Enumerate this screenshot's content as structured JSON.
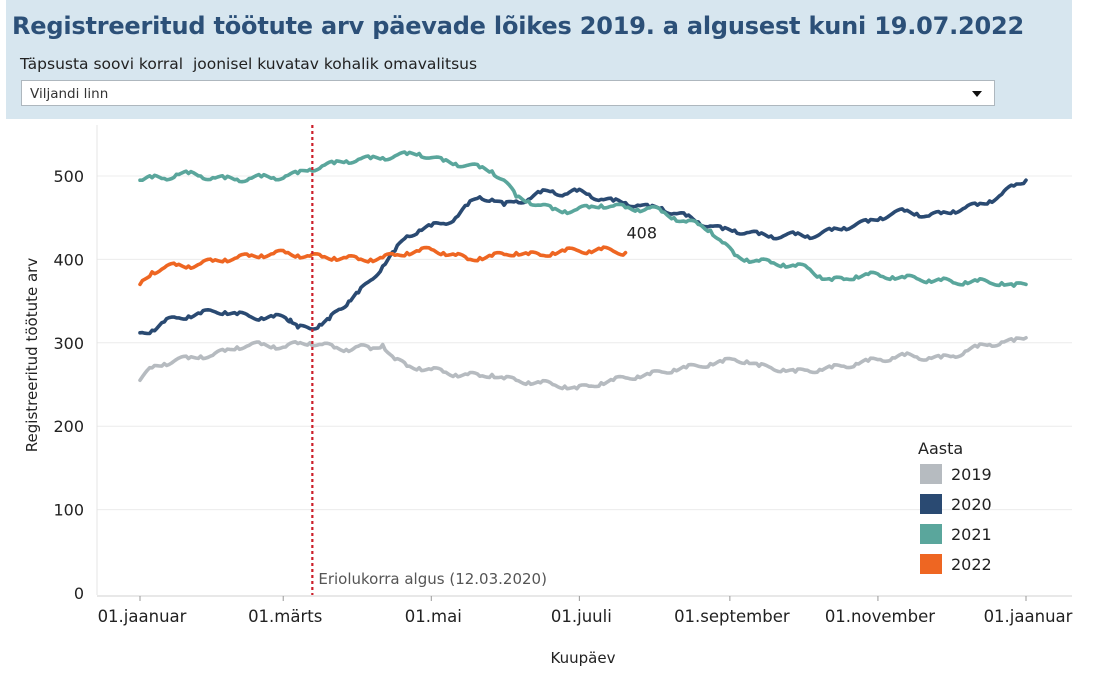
{
  "header": {
    "title": "Registreeritud töötute arv päevade lõikes 2019. a algusest kuni 19.07.2022",
    "filter_label": "Täpsusta soovi korral  joonisel kuvatav kohalik omavalitsus",
    "filter_value": "Viljandi linn"
  },
  "chart_data": {
    "type": "line",
    "title": "Registreeritud töötute arv päevade lõikes 2019. a algusest kuni 19.07.2022",
    "xlabel": "Kuupäev",
    "ylabel": "Registreeritud töötute arv",
    "xlim": [
      0,
      365
    ],
    "ylim": [
      0,
      540
    ],
    "y_ticks": [
      0,
      100,
      200,
      300,
      400,
      500
    ],
    "x_ticks": [
      {
        "day": 0,
        "label": "01.jaanuar"
      },
      {
        "day": 59,
        "label": "01.märts"
      },
      {
        "day": 120,
        "label": "01.mai"
      },
      {
        "day": 181,
        "label": "01.juuli"
      },
      {
        "day": 243,
        "label": "01.september"
      },
      {
        "day": 304,
        "label": "01.november"
      },
      {
        "day": 365,
        "label": "01.jaanuar"
      }
    ],
    "grid": true,
    "legend_title": "Aasta",
    "legend_position": "bottom-right",
    "reference_line": {
      "day": 71,
      "label": "Eriolukorra algus (12.03.2020)",
      "color": "#cc1f2a"
    },
    "end_label": {
      "series": "2022",
      "value": "408"
    },
    "series": [
      {
        "name": "2019",
        "color": "#b6bbc0",
        "points": [
          [
            0,
            255
          ],
          [
            5,
            270
          ],
          [
            10,
            275
          ],
          [
            15,
            280
          ],
          [
            20,
            281
          ],
          [
            25,
            284
          ],
          [
            30,
            285
          ],
          [
            35,
            290
          ],
          [
            40,
            295
          ],
          [
            45,
            297
          ],
          [
            50,
            298
          ],
          [
            55,
            296
          ],
          [
            60,
            295
          ],
          [
            65,
            299
          ],
          [
            70,
            300
          ],
          [
            75,
            298
          ],
          [
            80,
            294
          ],
          [
            85,
            292
          ],
          [
            90,
            296
          ],
          [
            95,
            292
          ],
          [
            100,
            298
          ],
          [
            105,
            280
          ],
          [
            110,
            272
          ],
          [
            115,
            270
          ],
          [
            120,
            268
          ],
          [
            125,
            265
          ],
          [
            130,
            262
          ],
          [
            135,
            262
          ],
          [
            140,
            260
          ],
          [
            145,
            262
          ],
          [
            150,
            257
          ],
          [
            155,
            255
          ],
          [
            160,
            253
          ],
          [
            165,
            252
          ],
          [
            170,
            250
          ],
          [
            175,
            248
          ],
          [
            180,
            245
          ],
          [
            185,
            248
          ],
          [
            190,
            252
          ],
          [
            195,
            255
          ],
          [
            200,
            258
          ],
          [
            205,
            260
          ],
          [
            210,
            262
          ],
          [
            215,
            265
          ],
          [
            220,
            268
          ],
          [
            225,
            270
          ],
          [
            230,
            272
          ],
          [
            235,
            275
          ],
          [
            240,
            277
          ],
          [
            245,
            280
          ],
          [
            250,
            278
          ],
          [
            255,
            272
          ],
          [
            260,
            270
          ],
          [
            265,
            268
          ],
          [
            270,
            265
          ],
          [
            275,
            267
          ],
          [
            280,
            268
          ],
          [
            285,
            270
          ],
          [
            290,
            272
          ],
          [
            295,
            275
          ],
          [
            300,
            278
          ],
          [
            305,
            280
          ],
          [
            310,
            282
          ],
          [
            315,
            285
          ],
          [
            320,
            283
          ],
          [
            325,
            282
          ],
          [
            330,
            282
          ],
          [
            335,
            284
          ],
          [
            340,
            290
          ],
          [
            345,
            295
          ],
          [
            350,
            298
          ],
          [
            355,
            301
          ],
          [
            360,
            302
          ],
          [
            365,
            306
          ]
        ]
      },
      {
        "name": "2020",
        "color": "#2a4a72",
        "points": [
          [
            0,
            312
          ],
          [
            5,
            315
          ],
          [
            10,
            325
          ],
          [
            15,
            330
          ],
          [
            20,
            332
          ],
          [
            25,
            335
          ],
          [
            30,
            338
          ],
          [
            35,
            337
          ],
          [
            40,
            334
          ],
          [
            45,
            332
          ],
          [
            50,
            330
          ],
          [
            55,
            331
          ],
          [
            60,
            330
          ],
          [
            62,
            328
          ],
          [
            65,
            318
          ],
          [
            70,
            317
          ],
          [
            74,
            322
          ],
          [
            78,
            328
          ],
          [
            82,
            340
          ],
          [
            86,
            350
          ],
          [
            90,
            360
          ],
          [
            95,
            375
          ],
          [
            100,
            392
          ],
          [
            105,
            410
          ],
          [
            110,
            428
          ],
          [
            115,
            435
          ],
          [
            120,
            440
          ],
          [
            125,
            443
          ],
          [
            130,
            450
          ],
          [
            135,
            465
          ],
          [
            140,
            475
          ],
          [
            145,
            472
          ],
          [
            150,
            465
          ],
          [
            155,
            470
          ],
          [
            160,
            472
          ],
          [
            165,
            480
          ],
          [
            170,
            482
          ],
          [
            175,
            478
          ],
          [
            180,
            482
          ],
          [
            185,
            478
          ],
          [
            190,
            472
          ],
          [
            195,
            470
          ],
          [
            200,
            468
          ],
          [
            205,
            465
          ],
          [
            210,
            462
          ],
          [
            215,
            462
          ],
          [
            220,
            455
          ],
          [
            225,
            452
          ],
          [
            230,
            445
          ],
          [
            235,
            440
          ],
          [
            240,
            436
          ],
          [
            245,
            435
          ],
          [
            250,
            432
          ],
          [
            255,
            430
          ],
          [
            260,
            428
          ],
          [
            265,
            428
          ],
          [
            270,
            430
          ],
          [
            275,
            428
          ],
          [
            280,
            430
          ],
          [
            285,
            435
          ],
          [
            290,
            438
          ],
          [
            295,
            442
          ],
          [
            300,
            445
          ],
          [
            305,
            450
          ],
          [
            310,
            455
          ],
          [
            315,
            458
          ],
          [
            320,
            455
          ],
          [
            325,
            452
          ],
          [
            330,
            455
          ],
          [
            335,
            458
          ],
          [
            340,
            462
          ],
          [
            345,
            465
          ],
          [
            350,
            470
          ],
          [
            355,
            478
          ],
          [
            360,
            488
          ],
          [
            365,
            495
          ]
        ]
      },
      {
        "name": "2021",
        "color": "#5aa69c",
        "points": [
          [
            0,
            495
          ],
          [
            5,
            498
          ],
          [
            10,
            497
          ],
          [
            15,
            502
          ],
          [
            20,
            503
          ],
          [
            25,
            500
          ],
          [
            30,
            498
          ],
          [
            35,
            497
          ],
          [
            40,
            496
          ],
          [
            45,
            497
          ],
          [
            50,
            499
          ],
          [
            55,
            498
          ],
          [
            60,
            500
          ],
          [
            65,
            503
          ],
          [
            70,
            508
          ],
          [
            75,
            512
          ],
          [
            80,
            515
          ],
          [
            85,
            518
          ],
          [
            90,
            520
          ],
          [
            95,
            521
          ],
          [
            100,
            522
          ],
          [
            105,
            524
          ],
          [
            110,
            526
          ],
          [
            115,
            527
          ],
          [
            120,
            522
          ],
          [
            125,
            518
          ],
          [
            130,
            515
          ],
          [
            135,
            513
          ],
          [
            140,
            510
          ],
          [
            145,
            506
          ],
          [
            150,
            495
          ],
          [
            155,
            475
          ],
          [
            160,
            470
          ],
          [
            165,
            465
          ],
          [
            170,
            460
          ],
          [
            175,
            458
          ],
          [
            180,
            460
          ],
          [
            185,
            462
          ],
          [
            190,
            465
          ],
          [
            195,
            464
          ],
          [
            200,
            462
          ],
          [
            205,
            460
          ],
          [
            210,
            462
          ],
          [
            215,
            457
          ],
          [
            220,
            450
          ],
          [
            225,
            445
          ],
          [
            230,
            442
          ],
          [
            235,
            435
          ],
          [
            240,
            420
          ],
          [
            245,
            405
          ],
          [
            250,
            400
          ],
          [
            255,
            398
          ],
          [
            260,
            396
          ],
          [
            265,
            394
          ],
          [
            270,
            392
          ],
          [
            275,
            390
          ],
          [
            280,
            380
          ],
          [
            285,
            375
          ],
          [
            290,
            376
          ],
          [
            295,
            380
          ],
          [
            300,
            382
          ],
          [
            305,
            380
          ],
          [
            310,
            379
          ],
          [
            315,
            378
          ],
          [
            320,
            377
          ],
          [
            325,
            375
          ],
          [
            330,
            375
          ],
          [
            335,
            372
          ],
          [
            340,
            373
          ],
          [
            345,
            374
          ],
          [
            350,
            372
          ],
          [
            355,
            372
          ],
          [
            360,
            368
          ],
          [
            365,
            370
          ]
        ]
      },
      {
        "name": "2022",
        "color": "#ee6622",
        "points": [
          [
            0,
            370
          ],
          [
            5,
            385
          ],
          [
            10,
            390
          ],
          [
            15,
            393
          ],
          [
            20,
            392
          ],
          [
            25,
            395
          ],
          [
            30,
            398
          ],
          [
            35,
            400
          ],
          [
            40,
            402
          ],
          [
            45,
            404
          ],
          [
            50,
            405
          ],
          [
            55,
            407
          ],
          [
            60,
            408
          ],
          [
            65,
            405
          ],
          [
            70,
            404
          ],
          [
            75,
            403
          ],
          [
            80,
            402
          ],
          [
            85,
            402
          ],
          [
            90,
            400
          ],
          [
            95,
            400
          ],
          [
            100,
            402
          ],
          [
            105,
            405
          ],
          [
            110,
            408
          ],
          [
            115,
            410
          ],
          [
            120,
            412
          ],
          [
            125,
            408
          ],
          [
            130,
            405
          ],
          [
            135,
            400
          ],
          [
            140,
            402
          ],
          [
            145,
            404
          ],
          [
            150,
            406
          ],
          [
            155,
            408
          ],
          [
            160,
            406
          ],
          [
            165,
            405
          ],
          [
            170,
            408
          ],
          [
            175,
            410
          ],
          [
            180,
            411
          ],
          [
            185,
            410
          ],
          [
            190,
            412
          ],
          [
            195,
            410
          ],
          [
            200,
            408
          ]
        ]
      }
    ]
  }
}
